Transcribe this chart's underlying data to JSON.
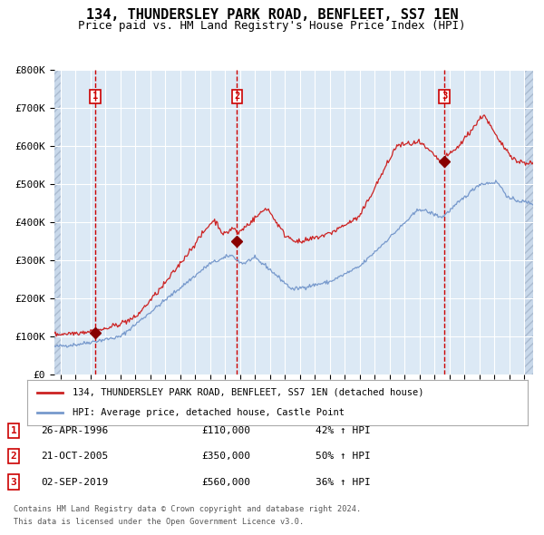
{
  "title": "134, THUNDERSLEY PARK ROAD, BENFLEET, SS7 1EN",
  "subtitle": "Price paid vs. HM Land Registry's House Price Index (HPI)",
  "title_fontsize": 11,
  "subtitle_fontsize": 9,
  "bg_color": "#dce9f5",
  "hatch_color": "#c8d8ea",
  "grid_color": "#ffffff",
  "red_line_color": "#cc2222",
  "blue_line_color": "#7799cc",
  "marker_color": "#880000",
  "vline_color": "#cc0000",
  "ylim": [
    0,
    800000
  ],
  "yticks": [
    0,
    100000,
    200000,
    300000,
    400000,
    500000,
    600000,
    700000,
    800000
  ],
  "ytick_labels": [
    "£0",
    "£100K",
    "£200K",
    "£300K",
    "£400K",
    "£500K",
    "£600K",
    "£700K",
    "£800K"
  ],
  "legend_label_red": "134, THUNDERSLEY PARK ROAD, BENFLEET, SS7 1EN (detached house)",
  "legend_label_blue": "HPI: Average price, detached house, Castle Point",
  "transactions": [
    {
      "num": 1,
      "date": "26-APR-1996",
      "price": 110000,
      "pct": "42%",
      "dir": "↑",
      "year_x": 1996.32
    },
    {
      "num": 2,
      "date": "21-OCT-2005",
      "price": 350000,
      "pct": "50%",
      "dir": "↑",
      "year_x": 2005.8
    },
    {
      "num": 3,
      "date": "02-SEP-2019",
      "price": 560000,
      "pct": "36%",
      "dir": "↑",
      "year_x": 2019.67
    }
  ],
  "footer_line1": "Contains HM Land Registry data © Crown copyright and database right 2024.",
  "footer_line2": "This data is licensed under the Open Government Licence v3.0.",
  "xtick_start": 1994,
  "xtick_end": 2025,
  "xlim": [
    1993.6,
    2025.6
  ]
}
